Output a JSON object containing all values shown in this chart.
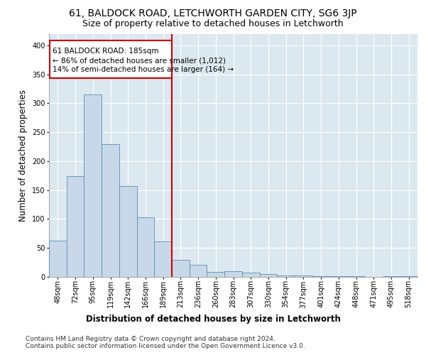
{
  "title": "61, BALDOCK ROAD, LETCHWORTH GARDEN CITY, SG6 3JP",
  "subtitle": "Size of property relative to detached houses in Letchworth",
  "xlabel": "Distribution of detached houses by size in Letchworth",
  "ylabel": "Number of detached properties",
  "categories": [
    "48sqm",
    "72sqm",
    "95sqm",
    "119sqm",
    "142sqm",
    "166sqm",
    "189sqm",
    "213sqm",
    "236sqm",
    "260sqm",
    "283sqm",
    "307sqm",
    "330sqm",
    "354sqm",
    "377sqm",
    "401sqm",
    "424sqm",
    "448sqm",
    "471sqm",
    "495sqm",
    "518sqm"
  ],
  "values": [
    62,
    174,
    315,
    229,
    157,
    103,
    61,
    29,
    21,
    9,
    10,
    7,
    5,
    3,
    2,
    1,
    1,
    1,
    0,
    1,
    1
  ],
  "bar_color": "#c8d8e8",
  "bar_edge_color": "#5b8db8",
  "vline_x_index": 6,
  "vline_color": "#cc0000",
  "annotation_line1": "61 BALDOCK ROAD: 185sqm",
  "annotation_line2": "← 86% of detached houses are smaller (1,012)",
  "annotation_line3": "14% of semi-detached houses are larger (164) →",
  "annotation_box_color": "#cc0000",
  "ylim": [
    0,
    420
  ],
  "yticks": [
    0,
    50,
    100,
    150,
    200,
    250,
    300,
    350,
    400
  ],
  "background_color": "#dce8f0",
  "footer_text": "Contains HM Land Registry data © Crown copyright and database right 2024.\nContains public sector information licensed under the Open Government Licence v3.0.",
  "title_fontsize": 10,
  "subtitle_fontsize": 9,
  "axis_label_fontsize": 8.5,
  "tick_fontsize": 7,
  "footer_fontsize": 6.5,
  "annotation_fontsize": 7.5
}
